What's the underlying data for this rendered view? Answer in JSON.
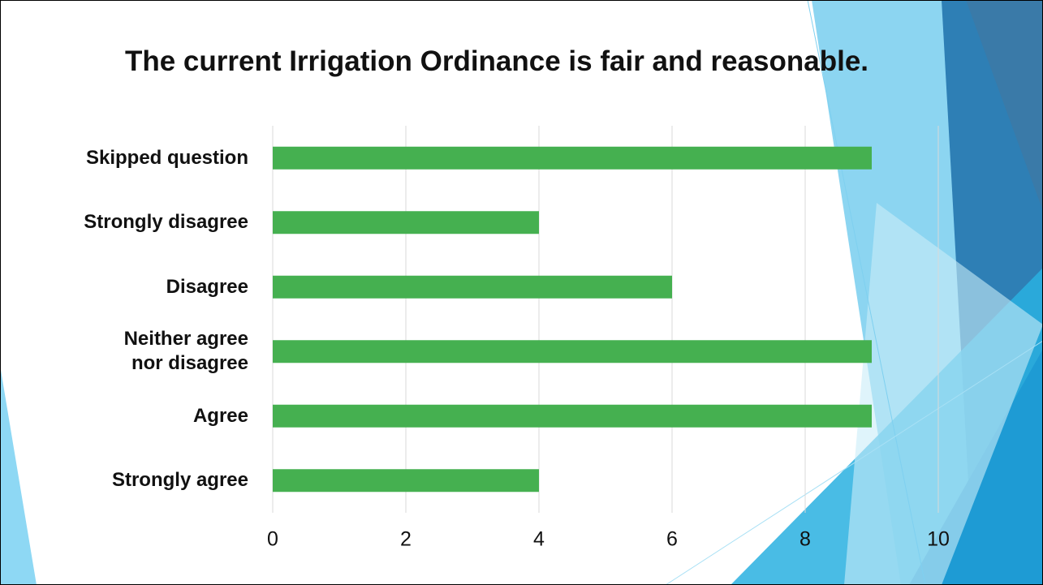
{
  "chart_data": {
    "type": "bar",
    "orientation": "horizontal",
    "title": "The current Irrigation Ordinance is fair and reasonable.",
    "categories": [
      "Skipped question",
      "Strongly disagree",
      "Disagree",
      "Neither agree nor disagree",
      "Agree",
      "Strongly agree"
    ],
    "values": [
      9,
      4,
      6,
      9,
      9,
      4
    ],
    "color": "#45b050",
    "xlim": [
      0,
      10
    ],
    "xticks": [
      0,
      2,
      4,
      6,
      8,
      10
    ],
    "grid": true
  }
}
